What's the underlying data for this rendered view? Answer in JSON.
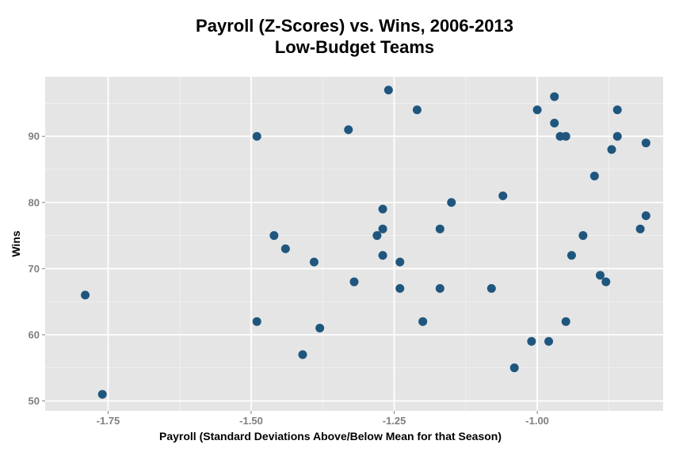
{
  "chart_data": {
    "type": "scatter",
    "title": "Payroll (Z-Scores) vs. Wins, 2006-2013",
    "subtitle": "Low-Budget Teams",
    "xlabel": "Payroll (Standard Deviations Above/Below Mean for that Season)",
    "ylabel": "Wins",
    "xlim": [
      -1.86,
      -0.78
    ],
    "ylim": [
      48.5,
      99
    ],
    "x_ticks": [
      -1.75,
      -1.5,
      -1.25,
      -1.0
    ],
    "x_tick_labels": [
      "-1.75",
      "-1.50",
      "-1.25",
      "-1.00"
    ],
    "y_ticks": [
      50,
      60,
      70,
      80,
      90
    ],
    "y_tick_labels": [
      "50",
      "60",
      "70",
      "80",
      "90"
    ],
    "grid": true,
    "point_color": "#1f567e",
    "panel_color": "#e5e5e5",
    "points": [
      {
        "x": -1.79,
        "y": 66
      },
      {
        "x": -1.76,
        "y": 51
      },
      {
        "x": -1.49,
        "y": 90
      },
      {
        "x": -1.49,
        "y": 62
      },
      {
        "x": -1.46,
        "y": 75
      },
      {
        "x": -1.44,
        "y": 73
      },
      {
        "x": -1.41,
        "y": 57
      },
      {
        "x": -1.39,
        "y": 71
      },
      {
        "x": -1.38,
        "y": 61
      },
      {
        "x": -1.33,
        "y": 91
      },
      {
        "x": -1.32,
        "y": 68
      },
      {
        "x": -1.28,
        "y": 75
      },
      {
        "x": -1.27,
        "y": 79
      },
      {
        "x": -1.27,
        "y": 76
      },
      {
        "x": -1.27,
        "y": 72
      },
      {
        "x": -1.26,
        "y": 97
      },
      {
        "x": -1.24,
        "y": 71
      },
      {
        "x": -1.24,
        "y": 67
      },
      {
        "x": -1.21,
        "y": 94
      },
      {
        "x": -1.2,
        "y": 62
      },
      {
        "x": -1.17,
        "y": 76
      },
      {
        "x": -1.17,
        "y": 67
      },
      {
        "x": -1.15,
        "y": 80
      },
      {
        "x": -1.08,
        "y": 67
      },
      {
        "x": -1.06,
        "y": 81
      },
      {
        "x": -1.04,
        "y": 55
      },
      {
        "x": -1.01,
        "y": 59
      },
      {
        "x": -1.0,
        "y": 94
      },
      {
        "x": -0.98,
        "y": 59
      },
      {
        "x": -0.97,
        "y": 96
      },
      {
        "x": -0.97,
        "y": 92
      },
      {
        "x": -0.96,
        "y": 90
      },
      {
        "x": -0.95,
        "y": 90
      },
      {
        "x": -0.95,
        "y": 62
      },
      {
        "x": -0.94,
        "y": 72
      },
      {
        "x": -0.92,
        "y": 75
      },
      {
        "x": -0.9,
        "y": 84
      },
      {
        "x": -0.89,
        "y": 69
      },
      {
        "x": -0.88,
        "y": 68
      },
      {
        "x": -0.87,
        "y": 88
      },
      {
        "x": -0.86,
        "y": 94
      },
      {
        "x": -0.86,
        "y": 90
      },
      {
        "x": -0.82,
        "y": 76
      },
      {
        "x": -0.81,
        "y": 89
      },
      {
        "x": -0.81,
        "y": 78
      }
    ]
  }
}
